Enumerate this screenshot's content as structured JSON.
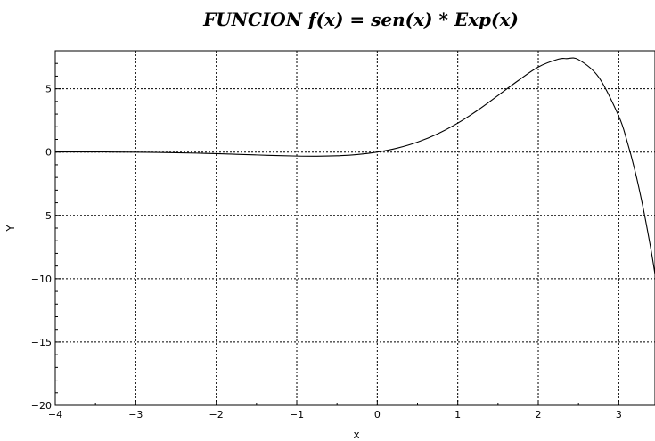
{
  "chart_data": {
    "type": "line",
    "title": "FUNCION f(x) = sen(x) * Exp(x)",
    "xlabel": "x",
    "ylabel": "Y",
    "xlim": [
      -4,
      3.45
    ],
    "ylim": [
      -20,
      8
    ],
    "grid": true,
    "x_ticks": [
      -4,
      -3,
      -2,
      -1,
      0,
      1,
      2,
      3
    ],
    "y_ticks": [
      -20,
      -15,
      -10,
      -5,
      0,
      5
    ],
    "x_tick_labels": [
      "−4",
      "−3",
      "−2",
      "−1",
      "0",
      "1",
      "2",
      "3"
    ],
    "y_tick_labels": [
      "−20",
      "−15",
      "−10",
      "−5",
      "0",
      "5"
    ],
    "series": [
      {
        "x": [
          -4.0,
          -3.75,
          -3.5,
          -3.25,
          -3.0,
          -2.75,
          -2.5,
          -2.25,
          -2.0,
          -1.75,
          -1.5,
          -1.25,
          -1.0,
          -0.75,
          -0.5,
          -0.25,
          0.0,
          0.25,
          0.5,
          0.75,
          1.0,
          1.25,
          1.5,
          1.75,
          2.0,
          2.25,
          2.35,
          2.5,
          2.75,
          3.0,
          3.1,
          3.2,
          3.3,
          3.4,
          3.45
        ],
        "values": [
          0.014,
          0.013,
          0.011,
          0.004,
          -0.007,
          -0.024,
          -0.049,
          -0.082,
          -0.123,
          -0.171,
          -0.223,
          -0.273,
          -0.31,
          -0.322,
          -0.291,
          -0.193,
          0.0,
          0.318,
          0.79,
          1.441,
          2.287,
          3.312,
          4.47,
          5.644,
          6.719,
          7.339,
          7.38,
          7.301,
          5.919,
          2.834,
          0.922,
          -1.441,
          -4.322,
          -7.7,
          -9.65
        ]
      }
    ]
  }
}
